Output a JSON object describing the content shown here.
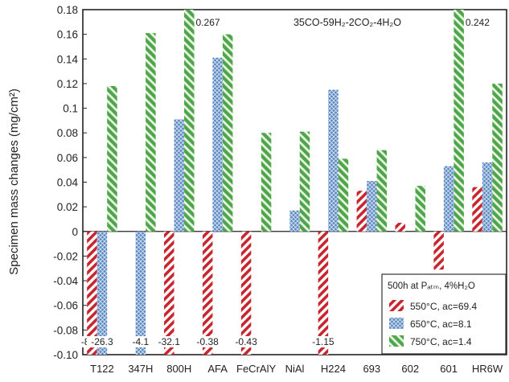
{
  "chart_data": {
    "type": "bar",
    "title": "",
    "annotation": "35CO-59H₂-2CO₂-4H₂O",
    "xlabel": "",
    "ylabel": "Specimen mass changes (mg/cm²)",
    "ylim": [
      -0.1,
      0.18
    ],
    "yticks": [
      "0.18",
      "0.16",
      "0.14",
      "0.12",
      "0.1",
      "0.08",
      "0.06",
      "0.04",
      "0.02",
      "0",
      "-0.02",
      "-0.04",
      "-0.06",
      "-0.08",
      "-0.10"
    ],
    "yticks_values": [
      0.18,
      0.16,
      0.14,
      0.12,
      0.1,
      0.08,
      0.06,
      0.04,
      0.02,
      0,
      -0.02,
      -0.04,
      -0.06,
      -0.08,
      -0.1
    ],
    "categories": [
      "T122",
      "347H",
      "800H",
      "AFA",
      "FeCrAlY",
      "NiAl",
      "H224",
      "693",
      "602",
      "601",
      "HR6W"
    ],
    "series": [
      {
        "name": "550°C, aᴄ=69.4",
        "color": "#c8262e",
        "pattern": "diagonal-hatch",
        "values": [
          -0.1,
          null,
          -0.1,
          -0.1,
          -0.1,
          null,
          -0.1,
          0.033,
          0.007,
          -0.031,
          0.036
        ],
        "value_labels": [
          "-85.5",
          "",
          "-32.1",
          "-0.38",
          "-0.43",
          "",
          "-1.15",
          "",
          "",
          "",
          ""
        ]
      },
      {
        "name": "650°C, aᴄ=8.1",
        "color": "#5b87c0",
        "pattern": "crosshatch",
        "values": [
          -0.1,
          -0.1,
          0.091,
          0.141,
          null,
          0.017,
          0.115,
          0.041,
          null,
          0.053,
          0.056
        ],
        "value_labels": [
          "-26.3",
          "-4.1",
          "",
          "",
          "",
          "",
          "",
          "",
          "",
          "",
          ""
        ]
      },
      {
        "name": "750°C, aᴄ=1.4",
        "color": "#4ea54a",
        "pattern": "diagonal-hatch",
        "values": [
          0.118,
          0.161,
          0.18,
          0.16,
          0.08,
          0.081,
          0.059,
          0.066,
          0.037,
          0.18,
          0.12
        ],
        "value_labels": [
          "",
          "",
          "0.267",
          "",
          "",
          "",
          "",
          "",
          "",
          "0.242",
          ""
        ]
      }
    ],
    "legend": {
      "title": "500h at Pₐₜₘ, 4%H₂O",
      "placement": "bottom-right"
    },
    "grid": false
  }
}
